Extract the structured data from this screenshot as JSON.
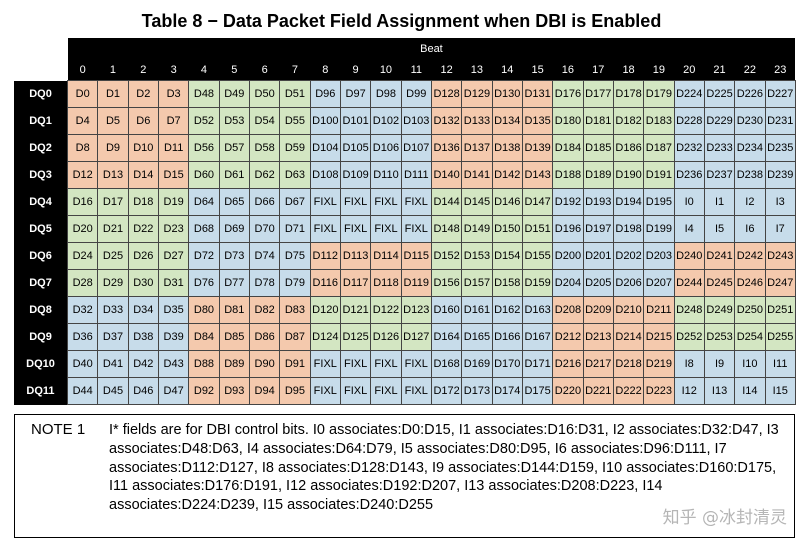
{
  "title": "Table 8 − Data Packet Field Assignment when DBI is Enabled",
  "beat_caption": "Beat",
  "beats": [
    "0",
    "1",
    "2",
    "3",
    "4",
    "5",
    "6",
    "7",
    "8",
    "9",
    "10",
    "11",
    "12",
    "13",
    "14",
    "15",
    "16",
    "17",
    "18",
    "19",
    "20",
    "21",
    "22",
    "23"
  ],
  "rows": [
    {
      "label": "DQ0",
      "cells": [
        "D0",
        "D1",
        "D2",
        "D3",
        "D48",
        "D49",
        "D50",
        "D51",
        "D96",
        "D97",
        "D98",
        "D99",
        "D128",
        "D129",
        "D130",
        "D131",
        "D176",
        "D177",
        "D178",
        "D179",
        "D224",
        "D225",
        "D226",
        "D227"
      ]
    },
    {
      "label": "DQ1",
      "cells": [
        "D4",
        "D5",
        "D6",
        "D7",
        "D52",
        "D53",
        "D54",
        "D55",
        "D100",
        "D101",
        "D102",
        "D103",
        "D132",
        "D133",
        "D134",
        "D135",
        "D180",
        "D181",
        "D182",
        "D183",
        "D228",
        "D229",
        "D230",
        "D231"
      ]
    },
    {
      "label": "DQ2",
      "cells": [
        "D8",
        "D9",
        "D10",
        "D11",
        "D56",
        "D57",
        "D58",
        "D59",
        "D104",
        "D105",
        "D106",
        "D107",
        "D136",
        "D137",
        "D138",
        "D139",
        "D184",
        "D185",
        "D186",
        "D187",
        "D232",
        "D233",
        "D234",
        "D235"
      ]
    },
    {
      "label": "DQ3",
      "cells": [
        "D12",
        "D13",
        "D14",
        "D15",
        "D60",
        "D61",
        "D62",
        "D63",
        "D108",
        "D109",
        "D110",
        "D111",
        "D140",
        "D141",
        "D142",
        "D143",
        "D188",
        "D189",
        "D190",
        "D191",
        "D236",
        "D237",
        "D238",
        "D239"
      ]
    },
    {
      "label": "DQ4",
      "cells": [
        "D16",
        "D17",
        "D18",
        "D19",
        "D64",
        "D65",
        "D66",
        "D67",
        "FIXL",
        "FIXL",
        "FIXL",
        "FIXL",
        "D144",
        "D145",
        "D146",
        "D147",
        "D192",
        "D193",
        "D194",
        "D195",
        "I0",
        "I1",
        "I2",
        "I3"
      ]
    },
    {
      "label": "DQ5",
      "cells": [
        "D20",
        "D21",
        "D22",
        "D23",
        "D68",
        "D69",
        "D70",
        "D71",
        "FIXL",
        "FIXL",
        "FIXL",
        "FIXL",
        "D148",
        "D149",
        "D150",
        "D151",
        "D196",
        "D197",
        "D198",
        "D199",
        "I4",
        "I5",
        "I6",
        "I7"
      ]
    },
    {
      "label": "DQ6",
      "cells": [
        "D24",
        "D25",
        "D26",
        "D27",
        "D72",
        "D73",
        "D74",
        "D75",
        "D112",
        "D113",
        "D114",
        "D115",
        "D152",
        "D153",
        "D154",
        "D155",
        "D200",
        "D201",
        "D202",
        "D203",
        "D240",
        "D241",
        "D242",
        "D243"
      ]
    },
    {
      "label": "DQ7",
      "cells": [
        "D28",
        "D29",
        "D30",
        "D31",
        "D76",
        "D77",
        "D78",
        "D79",
        "D116",
        "D117",
        "D118",
        "D119",
        "D156",
        "D157",
        "D158",
        "D159",
        "D204",
        "D205",
        "D206",
        "D207",
        "D244",
        "D245",
        "D246",
        "D247"
      ]
    },
    {
      "label": "DQ8",
      "cells": [
        "D32",
        "D33",
        "D34",
        "D35",
        "D80",
        "D81",
        "D82",
        "D83",
        "D120",
        "D121",
        "D122",
        "D123",
        "D160",
        "D161",
        "D162",
        "D163",
        "D208",
        "D209",
        "D210",
        "D211",
        "D248",
        "D249",
        "D250",
        "D251"
      ]
    },
    {
      "label": "DQ9",
      "cells": [
        "D36",
        "D37",
        "D38",
        "D39",
        "D84",
        "D85",
        "D86",
        "D87",
        "D124",
        "D125",
        "D126",
        "D127",
        "D164",
        "D165",
        "D166",
        "D167",
        "D212",
        "D213",
        "D214",
        "D215",
        "D252",
        "D253",
        "D254",
        "D255"
      ]
    },
    {
      "label": "DQ10",
      "cells": [
        "D40",
        "D41",
        "D42",
        "D43",
        "D88",
        "D89",
        "D90",
        "D91",
        "FIXL",
        "FIXL",
        "FIXL",
        "FIXL",
        "D168",
        "D169",
        "D170",
        "D171",
        "D216",
        "D217",
        "D218",
        "D219",
        "I8",
        "I9",
        "I10",
        "I11"
      ]
    },
    {
      "label": "DQ11",
      "cells": [
        "D44",
        "D45",
        "D46",
        "D47",
        "D92",
        "D93",
        "D94",
        "D95",
        "FIXL",
        "FIXL",
        "FIXL",
        "FIXL",
        "D172",
        "D173",
        "D174",
        "D175",
        "D220",
        "D221",
        "D222",
        "D223",
        "I12",
        "I13",
        "I14",
        "I15"
      ]
    }
  ],
  "note": {
    "label": "NOTE 1",
    "text": "I* fields are for DBI control bits. I0 associates:D0:D15, I1 associates:D16:D31, I2 associates:D32:D47, I3 associates:D48:D63, I4 associates:D64:D79, I5 associates:D80:D95, I6 associates:D96:D111, I7 associates:D112:D127, I8 associates:D128:D143, I9 associates:D144:D159, I10 associates:D160:D175, I11 associates:D176:D191, I12 associates:D192:D207, I13 associates:D208:D223, I14 associates:D224:D239, I15 associates:D240:D255"
  },
  "watermark": "知乎 @冰封清灵",
  "colors": {
    "orange": "#f4c9ad",
    "green": "#d3e6c2",
    "blue": "#c7dcea",
    "header": "#000000"
  }
}
